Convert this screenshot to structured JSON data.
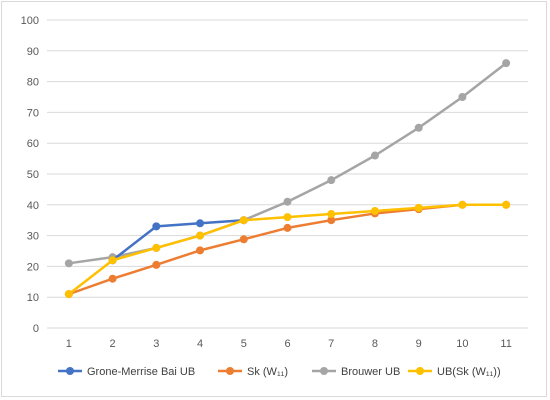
{
  "chart_data": {
    "type": "line",
    "title": "",
    "xlabel": "",
    "ylabel": "",
    "x": [
      1,
      2,
      3,
      4,
      5,
      6,
      7,
      8,
      9,
      10,
      11
    ],
    "ylim": [
      0,
      100
    ],
    "yticks": [
      0,
      10,
      20,
      30,
      40,
      50,
      60,
      70,
      80,
      90,
      100
    ],
    "grid": "horizontal",
    "legend_position": "bottom",
    "series": [
      {
        "name": "Grone-Merrise Bai UB",
        "color": "#4472C4",
        "x": [
          2,
          3,
          4,
          5
        ],
        "values": [
          22,
          33,
          34,
          35
        ]
      },
      {
        "name": "Sk (W₁₁)",
        "color": "#ED7D31",
        "x": [
          1,
          2,
          3,
          4,
          5,
          6,
          7,
          8,
          9,
          10,
          11
        ],
        "values": [
          11,
          16,
          20.5,
          25.2,
          28.8,
          32.5,
          35,
          37.2,
          38.6,
          40,
          40
        ]
      },
      {
        "name": "Brouwer UB",
        "color": "#A5A5A5",
        "x": [
          1,
          2,
          3,
          4,
          5,
          6,
          7,
          8,
          9,
          10,
          11
        ],
        "values": [
          21,
          23,
          26,
          30,
          35,
          41,
          48,
          56,
          65,
          75,
          86
        ]
      },
      {
        "name": "UB(Sk (W₁₁))",
        "color": "#FFC000",
        "x": [
          1,
          2,
          3,
          4,
          5,
          6,
          7,
          8,
          9,
          10,
          11
        ],
        "values": [
          11,
          22,
          26,
          30,
          35,
          36,
          37,
          38,
          39,
          40,
          40
        ]
      }
    ]
  }
}
